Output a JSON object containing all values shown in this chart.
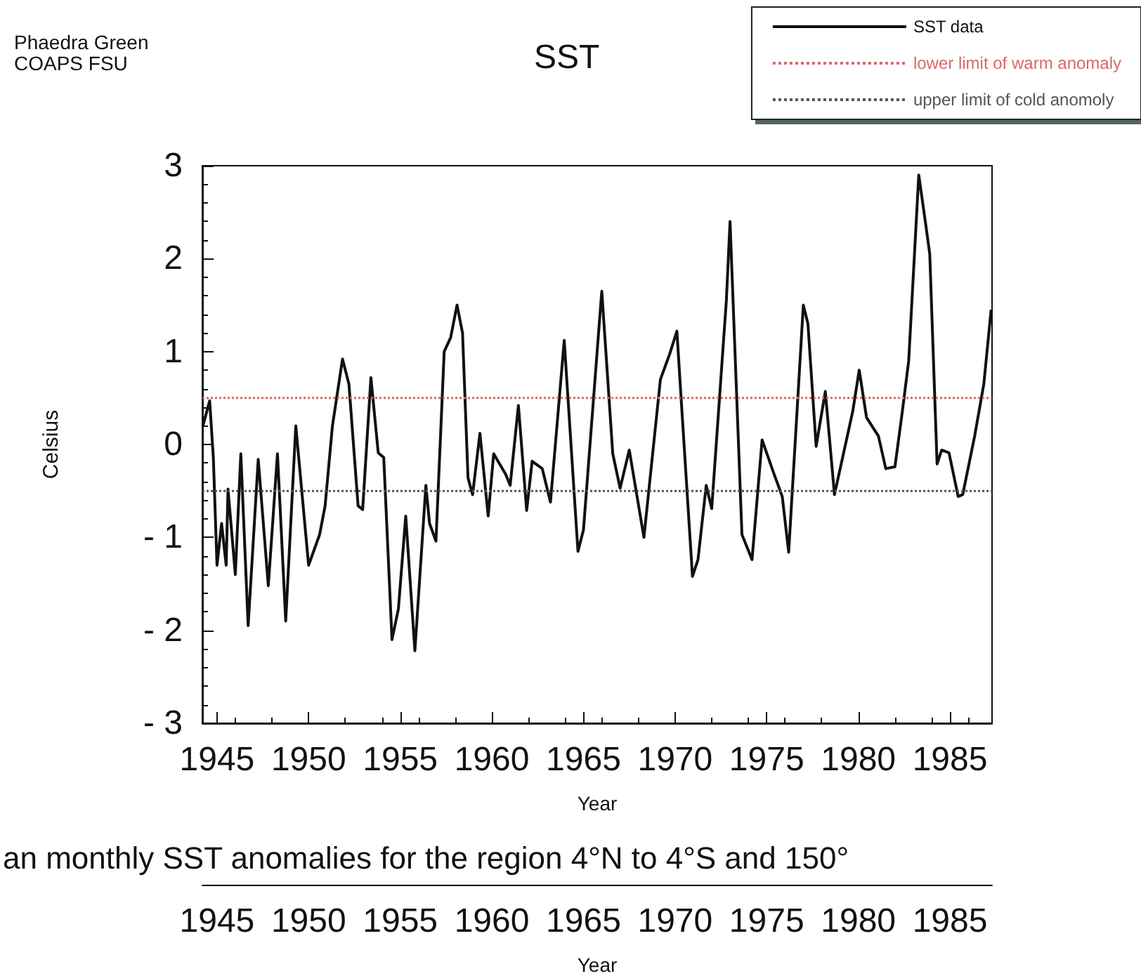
{
  "chart_data": {
    "type": "line",
    "title": "SST",
    "xlabel": "Year",
    "ylabel": "Celsius",
    "x2label": "Year",
    "annotations": [
      "Phaedra Green",
      "COAPS FSU",
      "an monthly SST anomalies for the region 4°N to 4°S and 150°"
    ],
    "series": [
      {
        "name": "SST data",
        "color": "#111111",
        "x": [
          1944.23,
          1944.6,
          1944.8,
          1945.0,
          1945.25,
          1945.5,
          1945.6,
          1946.0,
          1946.3,
          1946.7,
          1947.25,
          1947.8,
          1948.3,
          1948.75,
          1949.3,
          1950.0,
          1950.6,
          1950.9,
          1951.3,
          1951.85,
          1952.2,
          1952.7,
          1952.95,
          1953.4,
          1953.8,
          1954.1,
          1954.55,
          1954.9,
          1955.3,
          1955.8,
          1956.4,
          1956.6,
          1956.95,
          1957.4,
          1957.75,
          1958.1,
          1958.4,
          1958.7,
          1958.95,
          1959.35,
          1959.8,
          1960.1,
          1960.75,
          1961.0,
          1961.45,
          1961.9,
          1962.2,
          1962.75,
          1963.2,
          1963.95,
          1964.7,
          1965.0,
          1966.0,
          1966.6,
          1967.0,
          1967.5,
          1968.3,
          1969.2,
          1969.7,
          1970.1,
          1970.3,
          1970.95,
          1971.25,
          1971.7,
          1972.0,
          1972.8,
          1973.0,
          1973.65,
          1974.2,
          1974.75,
          1975.35,
          1975.85,
          1976.2,
          1977.0,
          1977.25,
          1977.7,
          1978.2,
          1978.7,
          1979.7,
          1980.05,
          1980.45,
          1981.1,
          1981.5,
          1982.0,
          1982.4,
          1982.75,
          1983.3,
          1983.65,
          1983.9,
          1984.3,
          1984.55,
          1984.95,
          1985.45,
          1985.7,
          1986.35,
          1986.85,
          1987.25
        ],
        "values": [
          0.2,
          0.47,
          -0.14,
          -1.3,
          -0.85,
          -1.3,
          -0.48,
          -1.4,
          -0.1,
          -1.95,
          -0.16,
          -1.52,
          -0.1,
          -1.9,
          0.2,
          -1.3,
          -0.97,
          -0.66,
          0.2,
          0.92,
          0.65,
          -0.66,
          -0.7,
          0.72,
          -0.09,
          -0.14,
          -2.1,
          -1.77,
          -0.77,
          -2.22,
          -0.44,
          -0.85,
          -1.04,
          1.0,
          1.15,
          1.5,
          1.2,
          -0.36,
          -0.54,
          0.12,
          -0.77,
          -0.1,
          -0.32,
          -0.44,
          0.42,
          -0.71,
          -0.18,
          -0.26,
          -0.62,
          1.12,
          -1.15,
          -0.92,
          1.65,
          -0.1,
          -0.47,
          -0.06,
          -1.0,
          0.7,
          0.97,
          1.22,
          0.59,
          -1.42,
          -1.24,
          -0.44,
          -0.69,
          1.55,
          2.4,
          -0.97,
          -1.24,
          0.05,
          -0.29,
          -0.56,
          -1.16,
          1.5,
          1.3,
          -0.02,
          0.57,
          -0.54,
          0.36,
          0.8,
          0.29,
          0.09,
          -0.26,
          -0.24,
          0.35,
          0.9,
          2.9,
          2.41,
          2.05,
          -0.21,
          -0.06,
          -0.09,
          -0.56,
          -0.54,
          0.09,
          0.65,
          1.45
        ]
      }
    ],
    "ref_lines": [
      {
        "axis": "y",
        "value": 0.5,
        "label": "lower limit of warm anomaly",
        "color": "#d46a6a",
        "line_style": "dotted"
      },
      {
        "axis": "y",
        "value": -0.5,
        "label": "upper limit of cold anomoly",
        "color": "#555555",
        "line_style": "dotted"
      }
    ],
    "xlim": [
      1944.2,
      1987.3
    ],
    "xticks": [
      1945,
      1950,
      1955,
      1960,
      1965,
      1970,
      1975,
      1980,
      1985
    ],
    "x2lim": [
      1944.2,
      1987.3
    ],
    "x2ticks": [
      1945,
      1950,
      1955,
      1960,
      1965,
      1970,
      1975,
      1980,
      1985
    ],
    "ylim": [
      -3,
      3
    ],
    "yticks": [
      {
        "value": -3,
        "label": "- 3"
      },
      {
        "value": -2,
        "label": "- 2"
      },
      {
        "value": -1,
        "label": "- 1"
      },
      0,
      1,
      2,
      3
    ],
    "grid": false,
    "legend": "top right",
    "marker": "none",
    "line_style": "solid"
  }
}
